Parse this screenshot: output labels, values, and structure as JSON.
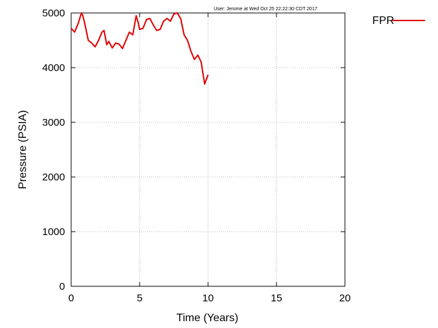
{
  "chart_data": {
    "type": "line",
    "title": "",
    "stamp": "User: Jerome at Wed Oct 25 22:22:30 CDT 2017",
    "xlabel": "Time (Years)",
    "ylabel": "Pressure (PSIA)",
    "xlim": [
      0,
      20
    ],
    "ylim": [
      0,
      5000
    ],
    "xticks": [
      "0",
      "5",
      "10",
      "15",
      "20"
    ],
    "yticks": [
      "0",
      "1000",
      "2000",
      "3000",
      "4000",
      "5000"
    ],
    "grid": true,
    "legend_position": "top-right-outside",
    "series": [
      {
        "name": "FPR",
        "color": "#e00000",
        "x": [
          0,
          0.25,
          0.5,
          0.75,
          0.85,
          1.0,
          1.25,
          1.5,
          1.75,
          2.0,
          2.25,
          2.4,
          2.6,
          2.75,
          3.0,
          3.25,
          3.5,
          3.75,
          4.0,
          4.25,
          4.5,
          4.75,
          4.9,
          5.0,
          5.25,
          5.5,
          5.75,
          6.0,
          6.25,
          6.5,
          6.75,
          7.0,
          7.25,
          7.5,
          7.75,
          8.0,
          8.25,
          8.5,
          8.75,
          9.0,
          9.25,
          9.5,
          9.75,
          10.0
        ],
        "y": [
          4720,
          4650,
          4800,
          5000,
          4950,
          4800,
          4500,
          4450,
          4380,
          4500,
          4650,
          4680,
          4420,
          4480,
          4360,
          4450,
          4430,
          4350,
          4500,
          4650,
          4600,
          4950,
          4820,
          4700,
          4720,
          4880,
          4900,
          4780,
          4680,
          4700,
          4850,
          4900,
          4850,
          4980,
          5000,
          4900,
          4600,
          4500,
          4300,
          4150,
          4230,
          4100,
          3700,
          3870
        ]
      }
    ]
  }
}
